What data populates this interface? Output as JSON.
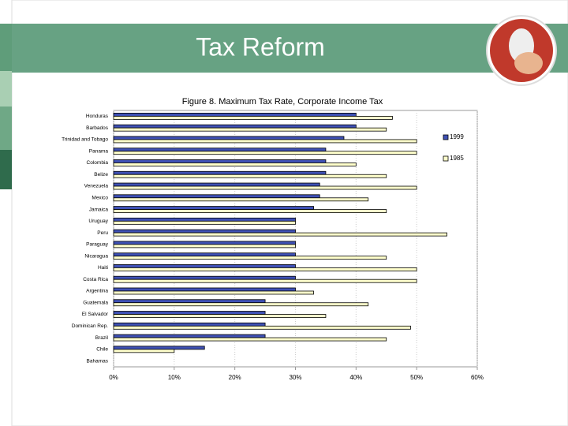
{
  "header": {
    "title": "Tax Reform"
  },
  "chart_data": {
    "type": "bar",
    "orientation": "horizontal",
    "title": "Figure 8.  Maximum Tax Rate, Corporate Income Tax",
    "categories": [
      "Honduras",
      "Barbados",
      "Trinidad and Tobago",
      "Panama",
      "Colombia",
      "Belize",
      "Venezuela",
      "Mexico",
      "Jamaica",
      "Uruguay",
      "Peru",
      "Paraguay",
      "Nicaragua",
      "Haiti",
      "Costa Rica",
      "Argentina",
      "Guatemala",
      "El Salvador",
      "Dominican Rep.",
      "Brazil",
      "Chile",
      "Bahamas"
    ],
    "series": [
      {
        "name": "1999",
        "color": "#3f51b5",
        "values": [
          40,
          40,
          38,
          35,
          35,
          35,
          34,
          34,
          33,
          30,
          30,
          30,
          30,
          30,
          30,
          30,
          25,
          25,
          25,
          25,
          15,
          0
        ]
      },
      {
        "name": "1985",
        "color": "#ffffcc",
        "values": [
          46,
          45,
          50,
          50,
          40,
          45,
          50,
          42,
          45,
          30,
          55,
          30,
          45,
          50,
          50,
          33,
          42,
          35,
          49,
          45,
          10,
          0
        ]
      }
    ],
    "xlim": [
      0,
      60
    ],
    "xticks": [
      {
        "value": 0,
        "label": "0%"
      },
      {
        "value": 10,
        "label": "10%"
      },
      {
        "value": 20,
        "label": "20%"
      },
      {
        "value": 30,
        "label": "30%"
      },
      {
        "value": 40,
        "label": "40%"
      },
      {
        "value": 50,
        "label": "50%"
      },
      {
        "value": 60,
        "label": "60%"
      }
    ],
    "grid": true,
    "legend": "right"
  }
}
